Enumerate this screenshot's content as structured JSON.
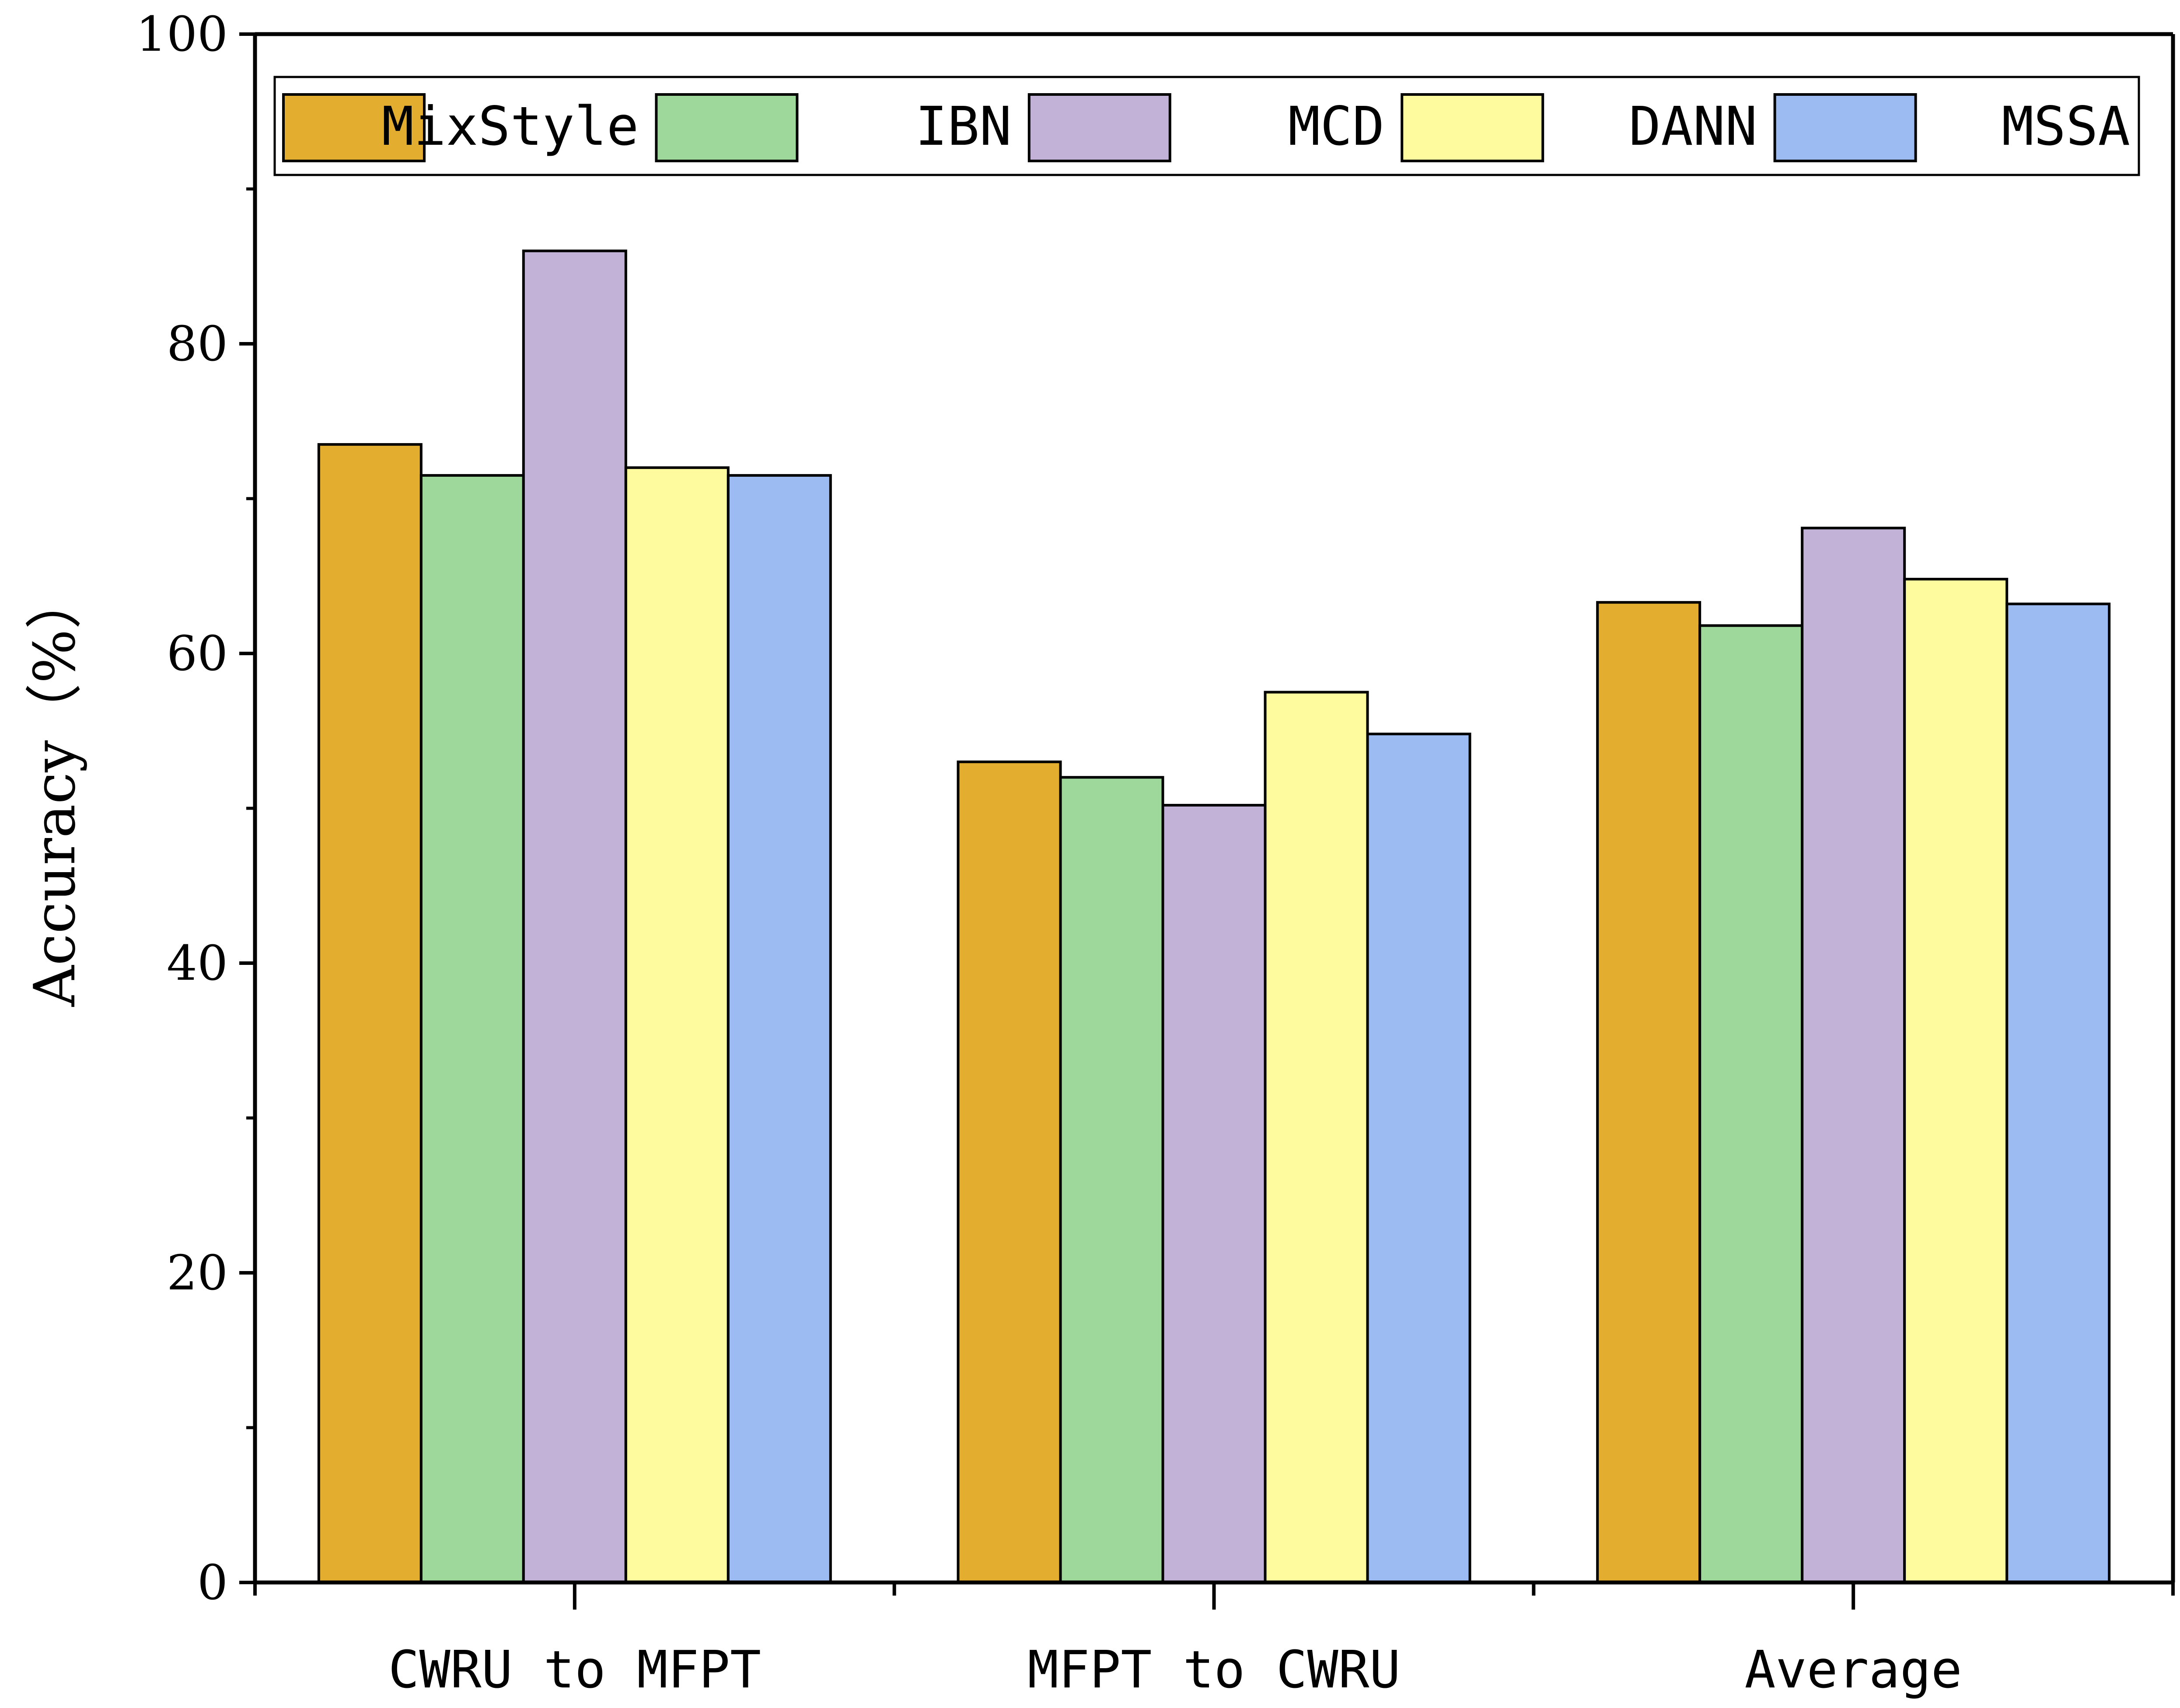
{
  "chart_data": {
    "type": "bar",
    "title": "",
    "xlabel": "",
    "ylabel": "Accuracy（%）",
    "ylim": [
      0,
      100
    ],
    "yticks": [
      0,
      20,
      40,
      60,
      80,
      100
    ],
    "yticks_minor": [
      10,
      30,
      50,
      70,
      90
    ],
    "grid": false,
    "legend_position": "top",
    "categories": [
      "CWRU to MFPT",
      "MFPT to CWRU",
      "Average"
    ],
    "series": [
      {
        "name": "MixStyle",
        "color": "#E3AE2F",
        "values": [
          73.5,
          53.0,
          63.3
        ]
      },
      {
        "name": "IBN",
        "color": "#9ED89B",
        "values": [
          71.5,
          52.0,
          61.8
        ]
      },
      {
        "name": "MCD",
        "color": "#C2B2D7",
        "values": [
          86.0,
          50.2,
          68.1
        ]
      },
      {
        "name": "DANN",
        "color": "#FEFB9F",
        "values": [
          72.0,
          57.5,
          64.8
        ]
      },
      {
        "name": "MSSA",
        "color": "#9DBBF3",
        "values": [
          71.5,
          54.8,
          63.2
        ]
      }
    ]
  }
}
